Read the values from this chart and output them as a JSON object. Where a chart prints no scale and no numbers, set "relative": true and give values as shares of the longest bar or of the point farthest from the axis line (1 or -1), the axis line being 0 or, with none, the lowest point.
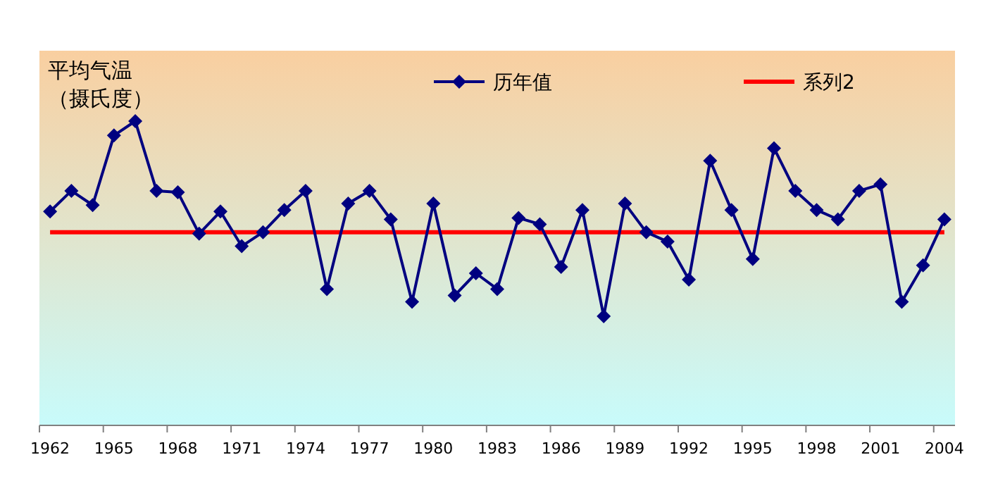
{
  "chart_data": {
    "type": "line",
    "relative": true,
    "ylabel": "平均气温（摄氏度）",
    "legend": "top",
    "categories": [
      "1962",
      null,
      null,
      "1965",
      null,
      null,
      "1968",
      null,
      null,
      "1971",
      null,
      null,
      "1974",
      null,
      null,
      "1977",
      null,
      null,
      "1980",
      null,
      null,
      "1983",
      null,
      null,
      "1986",
      null,
      null,
      "1989",
      null,
      null,
      "1992",
      null,
      null,
      "1995",
      null,
      null,
      "1998",
      null,
      null,
      "2001",
      null,
      null,
      "2004"
    ],
    "series": [
      {
        "name": "历年值",
        "color": "#000080",
        "marker": "diamond",
        "values": [
          0.703,
          0.771,
          0.724,
          0.953,
          1,
          0.771,
          0.766,
          0.63,
          0.703,
          0.589,
          0.635,
          0.708,
          0.771,
          0.448,
          0.729,
          0.771,
          0.677,
          0.406,
          0.729,
          0.427,
          0.5,
          0.448,
          0.682,
          0.661,
          0.521,
          0.708,
          0.359,
          0.729,
          0.635,
          0.604,
          0.479,
          0.87,
          0.708,
          0.547,
          0.911,
          0.771,
          0.708,
          0.677,
          0.771,
          0.792,
          0.406,
          0.526,
          0.677
        ]
      },
      {
        "name": "系列2",
        "color": "#ff0000",
        "marker": "none",
        "values": [
          0.635,
          0.635,
          0.635,
          0.635,
          0.635,
          0.635,
          0.635,
          0.635,
          0.635,
          0.635,
          0.635,
          0.635,
          0.635,
          0.635,
          0.635,
          0.635,
          0.635,
          0.635,
          0.635,
          0.635,
          0.635,
          0.635,
          0.635,
          0.635,
          0.635,
          0.635,
          0.635,
          0.635,
          0.635,
          0.635,
          0.635,
          0.635,
          0.635,
          0.635,
          0.635,
          0.635,
          0.635,
          0.635,
          0.635,
          0.635,
          0.635,
          0.635,
          0.635
        ]
      }
    ]
  }
}
